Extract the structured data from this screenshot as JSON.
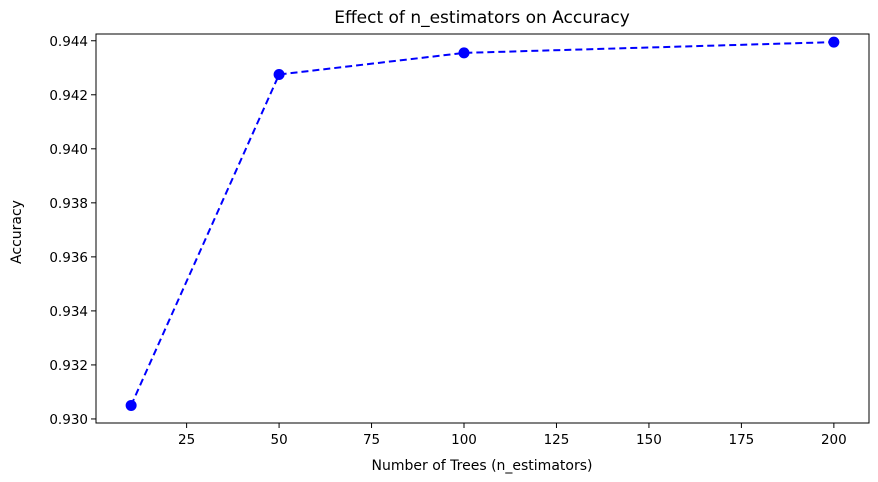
{
  "chart_data": {
    "type": "line",
    "title": "Effect of n_estimators on Accuracy",
    "xlabel": "Number of Trees (n_estimators)",
    "ylabel": "Accuracy",
    "xlim": [
      0.5,
      209.5
    ],
    "ylim": [
      0.92985,
      0.94425
    ],
    "xticks": [
      25,
      50,
      75,
      100,
      125,
      150,
      175,
      200
    ],
    "xtick_labels": [
      "25",
      "50",
      "75",
      "100",
      "125",
      "150",
      "175",
      "200"
    ],
    "yticks": [
      0.93,
      0.932,
      0.934,
      0.936,
      0.938,
      0.94,
      0.942,
      0.944
    ],
    "ytick_labels": [
      "0.930",
      "0.932",
      "0.934",
      "0.936",
      "0.938",
      "0.940",
      "0.942",
      "0.944"
    ],
    "grid": false,
    "series": [
      {
        "x": [
          10,
          50,
          100,
          200
        ],
        "y": [
          0.9305,
          0.94275,
          0.94355,
          0.94395
        ],
        "color": "#0000ff",
        "line_style": "dashed",
        "marker": "circle"
      }
    ]
  }
}
